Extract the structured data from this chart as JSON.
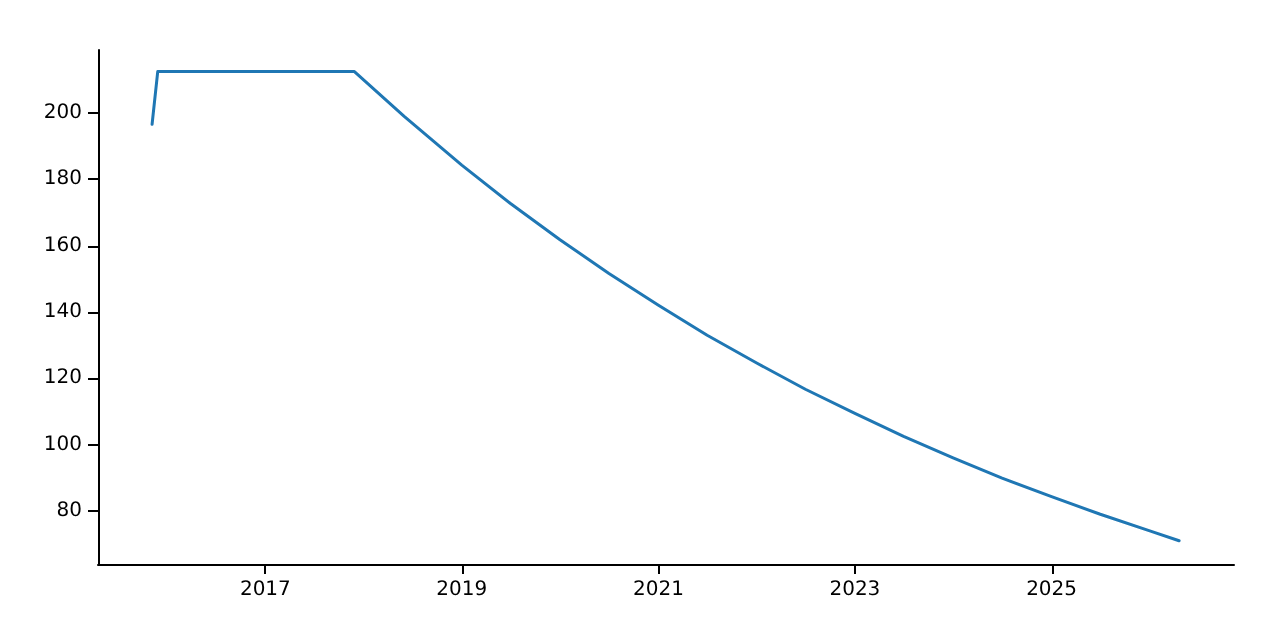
{
  "chart_data": {
    "type": "line",
    "x": [
      "2015-11-07",
      "2015-11-28",
      "2017-11-28",
      "2018-06-01",
      "2019-01-01",
      "2019-07-01",
      "2020-01-01",
      "2020-07-01",
      "2021-01-01",
      "2021-07-01",
      "2022-01-01",
      "2022-07-01",
      "2023-01-01",
      "2023-07-01",
      "2024-01-01",
      "2024-07-01",
      "2025-01-01",
      "2025-07-01",
      "2026-01-01",
      "2026-04-20"
    ],
    "series": [
      {
        "color": "#1f77b4",
        "values": [
          196.6,
          212.5,
          212.5,
          199.0,
          184.3,
          172.7,
          161.8,
          151.6,
          142.0,
          133.0,
          124.6,
          116.7,
          109.4,
          102.5,
          96.0,
          89.9,
          84.3,
          79.0,
          74.0,
          71.0
        ]
      }
    ],
    "xlim": [
      "2015-04-20",
      "2026-11-10"
    ],
    "ylim": [
      64,
      219
    ],
    "xticks": [
      "2017",
      "2019",
      "2021",
      "2023",
      "2025"
    ],
    "yticks": [
      80,
      100,
      120,
      140,
      160,
      180,
      200
    ],
    "grid": false,
    "marker": "none",
    "line_style": "solid"
  }
}
